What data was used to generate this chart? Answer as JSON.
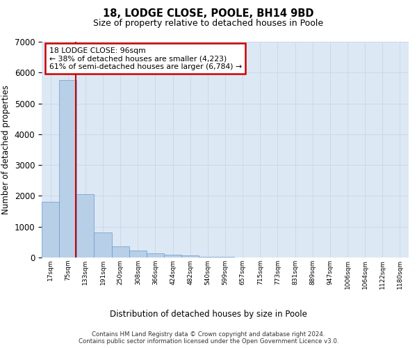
{
  "title1": "18, LODGE CLOSE, POOLE, BH14 9BD",
  "title2": "Size of property relative to detached houses in Poole",
  "xlabel": "Distribution of detached houses by size in Poole",
  "ylabel": "Number of detached properties",
  "categories": [
    "17sqm",
    "75sqm",
    "133sqm",
    "191sqm",
    "250sqm",
    "308sqm",
    "366sqm",
    "424sqm",
    "482sqm",
    "540sqm",
    "599sqm",
    "657sqm",
    "715sqm",
    "773sqm",
    "831sqm",
    "889sqm",
    "947sqm",
    "1006sqm",
    "1064sqm",
    "1122sqm",
    "1180sqm"
  ],
  "values": [
    1800,
    5750,
    2050,
    820,
    370,
    230,
    130,
    90,
    70,
    30,
    20,
    0,
    0,
    0,
    0,
    0,
    0,
    0,
    0,
    0,
    0
  ],
  "bar_color": "#b8cfe8",
  "bar_edge_color": "#6699cc",
  "annotation_box_text": "18 LODGE CLOSE: 96sqm\n← 38% of detached houses are smaller (4,223)\n61% of semi-detached houses are larger (6,784) →",
  "annotation_box_color": "#ffffff",
  "annotation_box_edge_color": "#cc0000",
  "vline_x": 1.45,
  "vline_color": "#cc0000",
  "ylim": [
    0,
    7000
  ],
  "yticks": [
    0,
    1000,
    2000,
    3000,
    4000,
    5000,
    6000,
    7000
  ],
  "grid_color": "#ccd8ec",
  "background_color": "#dde8f5",
  "footer_line1": "Contains HM Land Registry data © Crown copyright and database right 2024.",
  "footer_line2": "Contains public sector information licensed under the Open Government Licence v3.0."
}
